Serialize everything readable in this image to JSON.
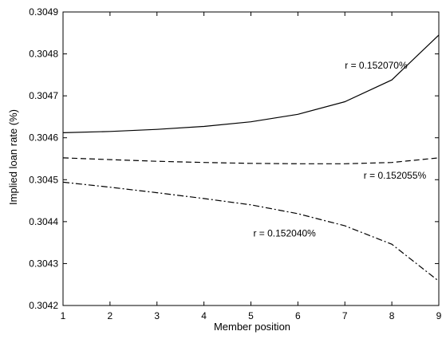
{
  "chart_data": {
    "type": "line",
    "title": "",
    "xlabel": "Member position",
    "ylabel": "Implied loan rate (%)",
    "xlim": [
      1,
      9
    ],
    "ylim": [
      0.3042,
      0.3049
    ],
    "xticks": [
      1,
      2,
      3,
      4,
      5,
      6,
      7,
      8,
      9
    ],
    "yticks": [
      0.3042,
      0.3043,
      0.3044,
      0.3045,
      0.3046,
      0.3047,
      0.3048,
      0.3049
    ],
    "ytick_labels": [
      "0.3042",
      "0.3043",
      "0.3044",
      "0.3045",
      "0.3046",
      "0.3047",
      "0.3048",
      "0.3049"
    ],
    "grid": false,
    "x": [
      1,
      2,
      3,
      4,
      5,
      6,
      7,
      8,
      9
    ],
    "series": [
      {
        "name": "",
        "style": "solid",
        "values": [
          0.304612,
          0.304615,
          0.30462,
          0.304627,
          0.304638,
          0.304656,
          0.304686,
          0.304738,
          0.304845
        ]
      },
      {
        "name": "",
        "style": "dashed",
        "values": [
          0.304552,
          0.304548,
          0.304544,
          0.304541,
          0.304539,
          0.304538,
          0.304538,
          0.304541,
          0.304552
        ]
      },
      {
        "name": "",
        "style": "dashdot",
        "values": [
          0.304494,
          0.304482,
          0.304469,
          0.304455,
          0.30444,
          0.304419,
          0.30439,
          0.304346,
          0.304258
        ]
      }
    ],
    "annotations": [
      {
        "text": "r = 0.152070%",
        "series": 0,
        "x": 7.0,
        "y": 0.304765
      },
      {
        "text": "r = 0.152055%",
        "series": 1,
        "x": 7.4,
        "y": 0.304502
      },
      {
        "text": "r = 0.152040%",
        "series": 2,
        "x": 5.05,
        "y": 0.304365
      }
    ]
  }
}
